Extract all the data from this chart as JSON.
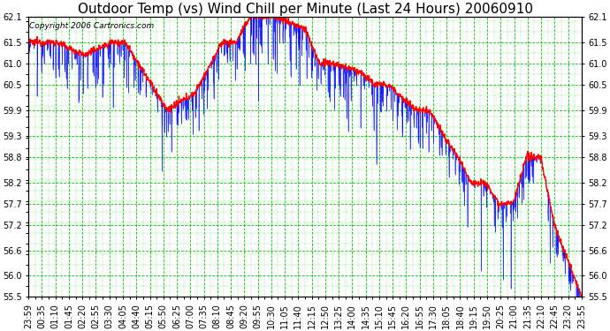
{
  "title": "Outdoor Temp (vs) Wind Chill per Minute (Last 24 Hours) 20060910",
  "copyright": "Copyright 2006 Cartronics.com",
  "x_labels": [
    "23:59",
    "00:35",
    "01:10",
    "01:45",
    "02:20",
    "02:55",
    "03:30",
    "04:05",
    "04:40",
    "05:15",
    "05:50",
    "06:25",
    "07:00",
    "07:35",
    "08:10",
    "08:45",
    "09:20",
    "09:55",
    "10:30",
    "11:05",
    "11:40",
    "12:15",
    "12:50",
    "13:25",
    "14:00",
    "14:35",
    "15:10",
    "15:45",
    "16:20",
    "16:55",
    "17:30",
    "18:05",
    "18:40",
    "19:15",
    "19:50",
    "20:25",
    "21:00",
    "21:35",
    "22:10",
    "22:45",
    "23:20",
    "23:55"
  ],
  "yticks": [
    55.5,
    56.0,
    56.6,
    57.2,
    57.7,
    58.2,
    58.8,
    59.3,
    59.9,
    60.5,
    61.0,
    61.5,
    62.1
  ],
  "ymin": 55.5,
  "ymax": 62.1,
  "background_color": "#ffffff",
  "grid_color": "#00cc00",
  "line_color_blue": "#0000ff",
  "line_color_red": "#ff0000",
  "title_fontsize": 11,
  "copyright_fontsize": 6.5,
  "tick_fontsize": 7
}
